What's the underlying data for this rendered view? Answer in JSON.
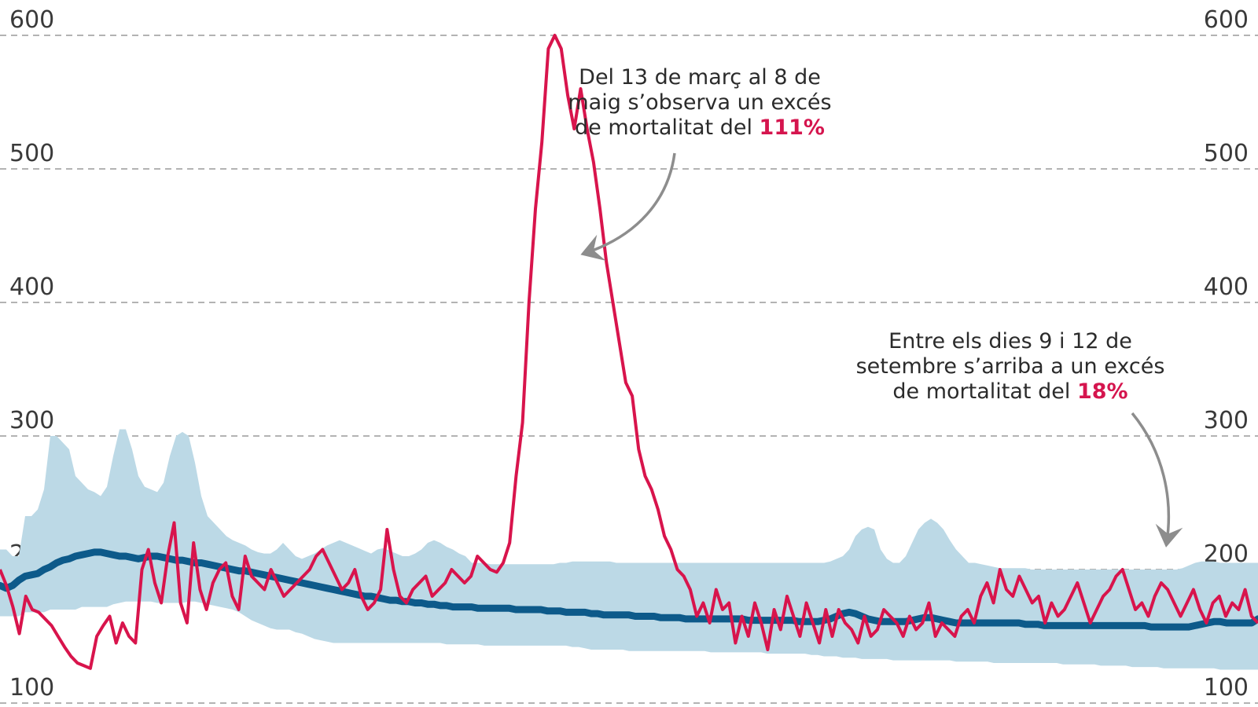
{
  "chart_data": {
    "type": "line",
    "title": "",
    "xlabel": "",
    "ylabel": "",
    "ylim": [
      100,
      600
    ],
    "yticks": [
      100,
      200,
      300,
      400,
      500,
      600
    ],
    "grid": true,
    "colors": {
      "observed": "#d8144c",
      "expected": "#0d5a8a",
      "band": "#bcd9e6"
    },
    "series": [
      {
        "role": "observed",
        "values": [
          200,
          188,
          172,
          152,
          180,
          170,
          168,
          163,
          158,
          150,
          142,
          135,
          130,
          128,
          126,
          150,
          158,
          165,
          145,
          160,
          150,
          145,
          200,
          215,
          190,
          175,
          210,
          235,
          175,
          160,
          220,
          185,
          170,
          190,
          200,
          205,
          180,
          170,
          210,
          195,
          190,
          185,
          200,
          190,
          180,
          185,
          190,
          195,
          200,
          210,
          215,
          205,
          195,
          185,
          190,
          200,
          180,
          170,
          175,
          185,
          230,
          200,
          180,
          175,
          185,
          190,
          195,
          180,
          185,
          190,
          200,
          195,
          190,
          195,
          210,
          205,
          200,
          198,
          205,
          220,
          270,
          310,
          400,
          470,
          520,
          590,
          600,
          590,
          555,
          530,
          560,
          530,
          505,
          470,
          430,
          400,
          370,
          340,
          330,
          290,
          270,
          260,
          245,
          225,
          215,
          200,
          195,
          185,
          165,
          175,
          160,
          185,
          170,
          175,
          145,
          165,
          150,
          175,
          160,
          140,
          170,
          155,
          180,
          165,
          150,
          175,
          160,
          145,
          170,
          150,
          170,
          160,
          155,
          145,
          165,
          150,
          155,
          170,
          165,
          160,
          150,
          165,
          155,
          160,
          175,
          150,
          160,
          155,
          150,
          165,
          170,
          160,
          180,
          190,
          175,
          200,
          185,
          180,
          195,
          185,
          175,
          180,
          160,
          175,
          165,
          170,
          180,
          190,
          175,
          160,
          170,
          180,
          185,
          195,
          200,
          185,
          170,
          175,
          165,
          180,
          190,
          185,
          175,
          165,
          175,
          185,
          170,
          160,
          175,
          180,
          165,
          175,
          170,
          185,
          165,
          160
        ]
      },
      {
        "role": "expected",
        "values": [
          188,
          186,
          188,
          192,
          195,
          196,
          197,
          200,
          202,
          205,
          207,
          208,
          210,
          211,
          212,
          213,
          213,
          212,
          211,
          210,
          210,
          209,
          208,
          209,
          210,
          210,
          209,
          208,
          207,
          207,
          206,
          205,
          205,
          204,
          203,
          202,
          201,
          200,
          199,
          199,
          198,
          197,
          196,
          195,
          194,
          193,
          192,
          191,
          190,
          189,
          188,
          187,
          186,
          185,
          184,
          183,
          182,
          181,
          180,
          180,
          179,
          178,
          177,
          177,
          176,
          176,
          175,
          175,
          174,
          174,
          173,
          173,
          172,
          172,
          172,
          172,
          171,
          171,
          171,
          171,
          171,
          171,
          170,
          170,
          170,
          170,
          170,
          169,
          169,
          169,
          168,
          168,
          168,
          168,
          167,
          167,
          166,
          166,
          166,
          166,
          166,
          165,
          165,
          165,
          165,
          164,
          164,
          164,
          164,
          163,
          163,
          163,
          163,
          163,
          163,
          163,
          163,
          163,
          163,
          162,
          162,
          162,
          162,
          162,
          162,
          162,
          162,
          161,
          161,
          161,
          161,
          162,
          163,
          165,
          167,
          168,
          167,
          165,
          163,
          162,
          161,
          161,
          161,
          161,
          161,
          162,
          163,
          164,
          164,
          163,
          162,
          161,
          160,
          160,
          160,
          160,
          160,
          160,
          160,
          160,
          160,
          160,
          160,
          159,
          159,
          159,
          158,
          158,
          158,
          158,
          158,
          158,
          158,
          158,
          158,
          158,
          158,
          158,
          158,
          158,
          158,
          158,
          158,
          157,
          157,
          157,
          157,
          157,
          157,
          157,
          158,
          159,
          160,
          161,
          161,
          160,
          160,
          160,
          160,
          160,
          163
        ]
      },
      {
        "role": "band-upper",
        "values": [
          215,
          215,
          210,
          210,
          240,
          240,
          245,
          260,
          300,
          300,
          295,
          290,
          270,
          265,
          260,
          258,
          255,
          262,
          285,
          305,
          305,
          290,
          270,
          262,
          260,
          258,
          265,
          285,
          300,
          303,
          300,
          280,
          255,
          240,
          235,
          230,
          225,
          222,
          220,
          218,
          215,
          213,
          212,
          212,
          215,
          220,
          215,
          210,
          208,
          210,
          212,
          215,
          218,
          220,
          222,
          220,
          218,
          216,
          214,
          212,
          215,
          216,
          214,
          212,
          210,
          210,
          212,
          215,
          220,
          222,
          220,
          217,
          215,
          212,
          210,
          205,
          205,
          205,
          204,
          204,
          204,
          204,
          204,
          204,
          204,
          204,
          204,
          204,
          204,
          205,
          205,
          206,
          206,
          206,
          206,
          206,
          206,
          206,
          205,
          205,
          205,
          205,
          205,
          205,
          205,
          205,
          205,
          205,
          205,
          205,
          205,
          205,
          205,
          205,
          205,
          205,
          205,
          205,
          205,
          205,
          205,
          205,
          205,
          205,
          205,
          205,
          205,
          205,
          205,
          205,
          205,
          205,
          206,
          208,
          210,
          215,
          225,
          230,
          232,
          230,
          215,
          208,
          205,
          205,
          210,
          220,
          230,
          235,
          238,
          235,
          230,
          222,
          215,
          210,
          205,
          205,
          204,
          203,
          202,
          201,
          201,
          201,
          201,
          201,
          200,
          200,
          200,
          200,
          200,
          200,
          200,
          200,
          200,
          200,
          200,
          200,
          200,
          200,
          200,
          200,
          200,
          200,
          200,
          200,
          200,
          200,
          200,
          200,
          201,
          203,
          205,
          206,
          206,
          206,
          205,
          205,
          205,
          205,
          205,
          205,
          205
        ]
      },
      {
        "role": "band-lower",
        "values": [
          165,
          165,
          165,
          165,
          168,
          168,
          168,
          168,
          170,
          170,
          170,
          170,
          170,
          172,
          172,
          172,
          172,
          172,
          174,
          175,
          176,
          176,
          176,
          176,
          176,
          175,
          175,
          175,
          175,
          175,
          176,
          176,
          175,
          174,
          173,
          172,
          171,
          170,
          168,
          165,
          162,
          160,
          158,
          156,
          155,
          155,
          155,
          153,
          152,
          150,
          148,
          147,
          146,
          145,
          145,
          145,
          145,
          145,
          145,
          145,
          145,
          145,
          145,
          145,
          145,
          145,
          145,
          145,
          145,
          145,
          145,
          144,
          144,
          144,
          144,
          144,
          144,
          143,
          143,
          143,
          143,
          143,
          143,
          143,
          143,
          143,
          143,
          143,
          143,
          143,
          143,
          142,
          142,
          141,
          140,
          140,
          140,
          140,
          140,
          140,
          139,
          139,
          139,
          139,
          139,
          139,
          139,
          139,
          139,
          139,
          139,
          139,
          139,
          138,
          138,
          138,
          138,
          138,
          138,
          138,
          138,
          138,
          137,
          137,
          137,
          137,
          137,
          137,
          137,
          136,
          136,
          135,
          135,
          135,
          134,
          134,
          134,
          133,
          133,
          133,
          133,
          133,
          132,
          132,
          132,
          132,
          132,
          132,
          132,
          132,
          132,
          132,
          131,
          131,
          131,
          131,
          131,
          131,
          130,
          130,
          130,
          130,
          130,
          130,
          130,
          130,
          130,
          130,
          130,
          129,
          129,
          129,
          129,
          129,
          129,
          128,
          128,
          128,
          128,
          128,
          127,
          127,
          127,
          127,
          127,
          126,
          126,
          126,
          126,
          126,
          126,
          126,
          126,
          126,
          125,
          125,
          125,
          125,
          125,
          125,
          125
        ]
      }
    ],
    "annotations": [
      {
        "id": "peak",
        "lines": [
          "Del 13 de març al 8 de",
          "maig s’observa un excés",
          "de mortalitat del "
        ],
        "highlight": "111%"
      },
      {
        "id": "september",
        "lines": [
          "Entre els dies 9 i 12 de",
          "setembre s’arriba a un excés",
          "de mortalitat del "
        ],
        "highlight": "18%"
      }
    ]
  }
}
